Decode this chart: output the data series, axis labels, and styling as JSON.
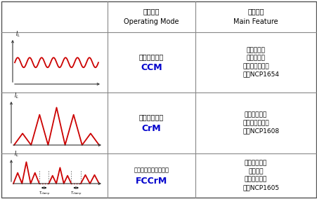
{
  "table_bg": "#ffffff",
  "border_color": "#888888",
  "header_row": {
    "line1_cn": "工作模式",
    "line2_en": "Operating Mode",
    "line1_cn_right": "主要特征",
    "line2_en_right": "Main Feature"
  },
  "rows": [
    {
      "mode_cn": "连续导电模式",
      "mode_abbr": "CCM",
      "features": [
        "总是硬开关",
        "电感値最大",
        "均方根电流最小",
        "如：NCP1654"
      ],
      "waveform": "CCM"
    },
    {
      "mode_cn": "临界导电模式",
      "mode_abbr": "CrM",
      "features": [
        "大均方根电流",
        "开关频率不固定",
        "如：NCP1608"
      ],
      "waveform": "CrM"
    },
    {
      "mode_cn": "频率钓位临界导电模式",
      "mode_abbr": "FCCrM",
      "features": [
        "大均方根电流",
        "频率受限",
        "线圈电感降低",
        "如：NCP1605"
      ],
      "waveform": "FCCrM"
    }
  ],
  "text_color": "#000000",
  "abbr_color": "#0000cc",
  "waveform_color": "#cc0000",
  "axis_color": "#333333"
}
